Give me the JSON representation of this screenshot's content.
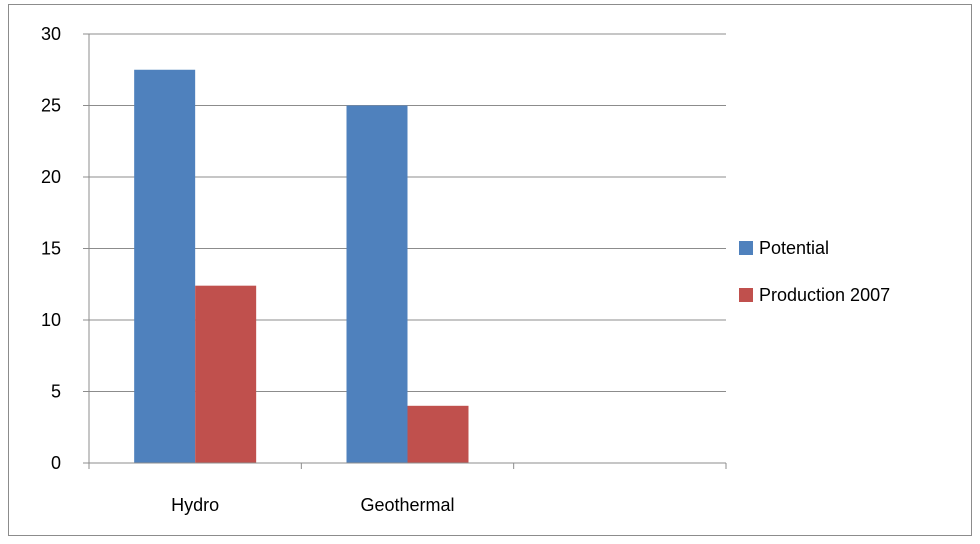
{
  "chart_data": {
    "type": "bar",
    "title": "",
    "xlabel": "",
    "ylabel": "",
    "categories": [
      "Hydro",
      "Geothermal",
      ""
    ],
    "series": [
      {
        "name": "Potential",
        "color": "#4f81bd",
        "values": [
          27.5,
          25,
          null
        ]
      },
      {
        "name": "Production 2007",
        "color": "#c0504d",
        "values": [
          12.4,
          4,
          null
        ]
      }
    ],
    "ylim": [
      0,
      30
    ],
    "yticks": [
      0,
      5,
      10,
      15,
      20,
      25,
      30
    ],
    "grid": true,
    "legend_position": "right"
  }
}
